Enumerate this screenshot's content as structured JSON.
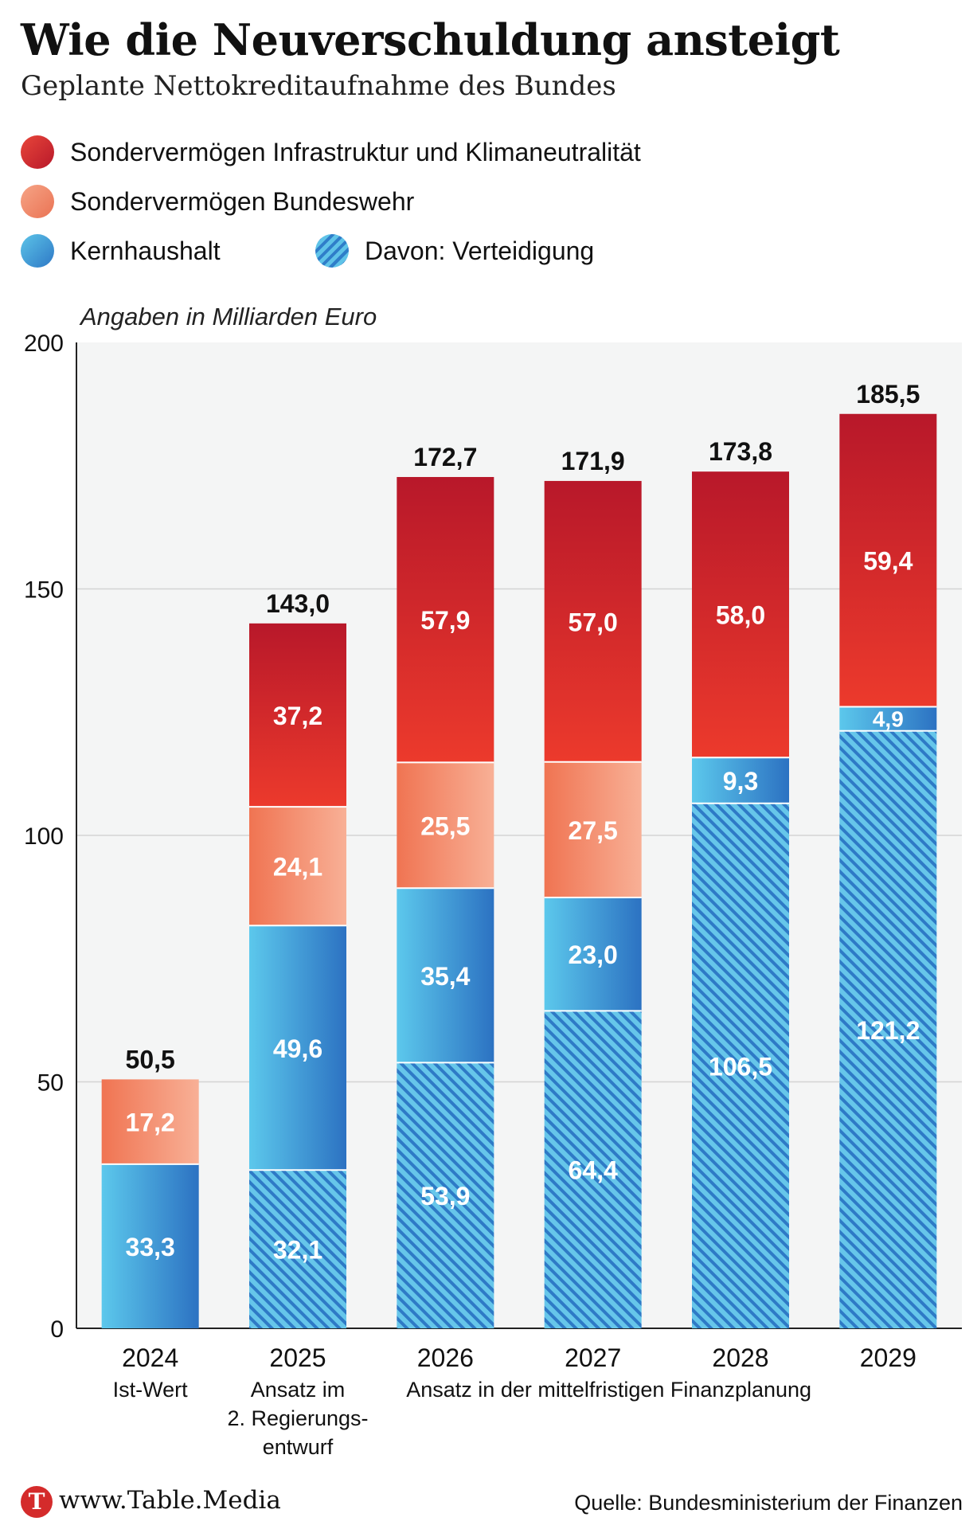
{
  "header": {
    "title": "Wie die Neuverschuldung ansteigt",
    "subtitle": "Geplante Nettokreditaufnahme des Bundes"
  },
  "legend": {
    "infra": "Sondervermögen Infrastruktur und Klimaneutralität",
    "bundeswehr": "Sondervermögen Bundeswehr",
    "kernhaushalt": "Kernhaushalt",
    "verteidigung": "Davon: Verteidigung"
  },
  "unit_note": "Angaben in Milliarden Euro",
  "footer": {
    "logo_letter": "T",
    "site": "www.Table.Media",
    "source": "Quelle: Bundesministerium der Finanzen"
  },
  "colors": {
    "infra_top": "#b8182a",
    "infra_bottom": "#ec3a2c",
    "bw_left": "#f07452",
    "bw_right": "#f8b096",
    "kern_left": "#5cc8ec",
    "kern_right": "#2c72c2",
    "vert_light": "#66c6ea",
    "vert_dark": "#2e7ac6",
    "plot_bg": "#f4f5f5",
    "grid": "#d3d4d4"
  },
  "chart_data": {
    "type": "bar",
    "stacked": true,
    "title": "Wie die Neuverschuldung ansteigt",
    "subtitle": "Geplante Nettokreditaufnahme des Bundes",
    "ylabel": "Angaben in Milliarden Euro",
    "ylim": [
      0,
      200
    ],
    "yticks": [
      0,
      50,
      100,
      150,
      200
    ],
    "grid": true,
    "categories": [
      "2024",
      "2025",
      "2026",
      "2027",
      "2028",
      "2029"
    ],
    "sublabels": [
      [
        "Ist-Wert"
      ],
      [
        "Ansatz im",
        "2. Regierungs-",
        "entwurf"
      ],
      [],
      [],
      [],
      []
    ],
    "group_label": "Ansatz in der mittelfristigen Finanzplanung",
    "series": [
      {
        "name": "Davon: Verteidigung",
        "key": "verteidigung",
        "values": [
          null,
          32.1,
          53.9,
          64.4,
          106.5,
          121.2
        ],
        "labels": [
          null,
          "32,1",
          "53,9",
          "64,4",
          "106,5",
          "121,2"
        ]
      },
      {
        "name": "Kernhaushalt",
        "key": "kernhaushalt",
        "values": [
          33.3,
          49.6,
          35.4,
          23.0,
          9.3,
          4.9
        ],
        "labels": [
          "33,3",
          "49,6",
          "35,4",
          "23,0",
          "9,3",
          "4,9"
        ]
      },
      {
        "name": "Sondervermögen Bundeswehr",
        "key": "bundeswehr",
        "values": [
          17.2,
          24.1,
          25.5,
          27.5,
          null,
          null
        ],
        "labels": [
          "17,2",
          "24,1",
          "25,5",
          "27,5",
          null,
          null
        ]
      },
      {
        "name": "Sondervermögen Infrastruktur und Klimaneutralität",
        "key": "infra",
        "values": [
          null,
          37.2,
          57.9,
          57.0,
          58.0,
          59.4
        ],
        "labels": [
          null,
          "37,2",
          "57,9",
          "57,0",
          "58,0",
          "59,4"
        ]
      }
    ],
    "totals": [
      50.5,
      143.0,
      172.7,
      171.9,
      173.8,
      185.5
    ],
    "total_labels": [
      "50,5",
      "143,0",
      "172,7",
      "171,9",
      "173,8",
      "185,5"
    ]
  }
}
